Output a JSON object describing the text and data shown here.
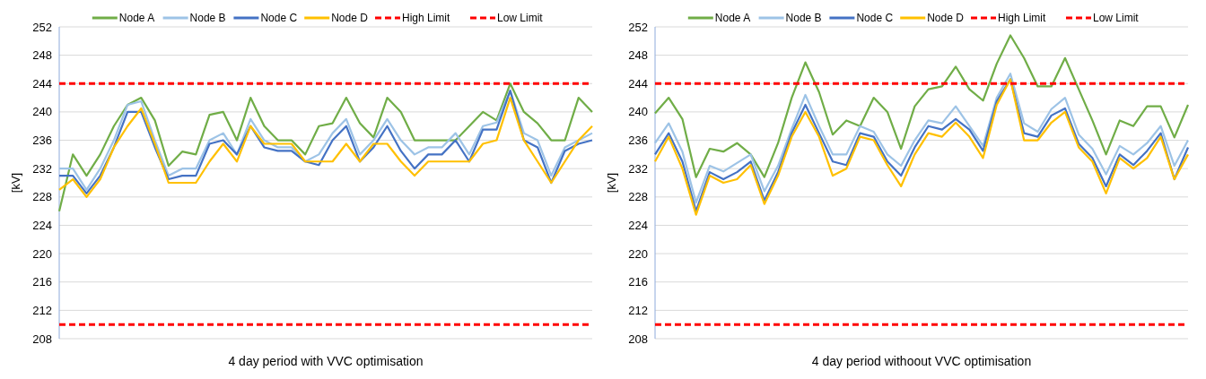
{
  "chart_data": [
    {
      "type": "line",
      "xlabel": "4 day period with VVC optimisation",
      "ylabel": "[kV]",
      "categories": [
        null,
        null,
        null,
        null,
        null,
        null,
        null,
        null,
        null,
        null,
        null,
        null,
        null,
        null,
        null,
        null,
        null,
        null,
        null,
        null,
        null,
        null,
        null,
        null,
        null,
        null,
        null,
        null,
        null,
        null,
        null,
        null,
        null,
        null,
        null,
        null,
        null,
        null,
        null,
        null
      ],
      "ylim": [
        208,
        252
      ],
      "yticks": [
        208,
        212,
        216,
        220,
        224,
        228,
        232,
        236,
        240,
        244,
        248,
        252
      ],
      "grid": "y",
      "legend": "top",
      "line_style": "solid",
      "series": [
        {
          "name": "Node A",
          "color": "#70ad47",
          "values": [
            226,
            234,
            231,
            234,
            238,
            241,
            242,
            238.8,
            232.4,
            234.4,
            234,
            239.6,
            240,
            236,
            242,
            238,
            236,
            236,
            234,
            238,
            238.4,
            242,
            238.4,
            236.4,
            242,
            240,
            236,
            236,
            236,
            236,
            238,
            240,
            238.8,
            244,
            240,
            238.4,
            236,
            236,
            242,
            240
          ]
        },
        {
          "name": "Node B",
          "color": "#9dc3e6",
          "values": [
            232,
            232,
            229,
            232,
            236,
            241,
            241.5,
            236,
            231,
            232,
            232,
            236,
            237,
            234,
            239,
            236,
            235,
            235,
            233,
            234,
            237,
            239,
            234,
            236,
            239,
            236,
            234,
            235,
            235,
            237,
            234,
            238,
            238.5,
            243,
            237,
            236,
            231,
            235,
            236,
            237
          ]
        },
        {
          "name": "Node C",
          "color": "#4472c4",
          "values": [
            231,
            231,
            228.5,
            231,
            235,
            240,
            240,
            235,
            230.5,
            231,
            231,
            235.5,
            236,
            234,
            238,
            235,
            234.5,
            234.5,
            233,
            232.5,
            236,
            238,
            233,
            235,
            238,
            234.5,
            232,
            234,
            234,
            236,
            233,
            237.5,
            237.5,
            243,
            236,
            235,
            230,
            234.5,
            235.5,
            236
          ]
        },
        {
          "name": "Node D",
          "color": "#ffc000",
          "values": [
            229,
            230.5,
            228,
            230.5,
            235,
            238,
            240.5,
            235.5,
            230,
            230,
            230,
            233,
            235.5,
            233,
            238,
            235.5,
            235.5,
            235.5,
            233,
            233,
            233,
            235.5,
            233,
            235.5,
            235.5,
            233,
            231,
            233,
            233,
            233,
            233,
            235.5,
            236,
            242,
            236,
            233,
            230,
            233,
            236,
            238
          ]
        }
      ],
      "ref_lines": [
        {
          "axis": "y",
          "value": 244,
          "label": "High Limit",
          "color": "#ff0000",
          "line_style": "dashed"
        },
        {
          "axis": "y",
          "value": 210,
          "label": "Low Limit",
          "color": "#ff0000",
          "line_style": "dashed"
        }
      ]
    },
    {
      "type": "line",
      "xlabel": "4 day period withoout VVC optimisation",
      "ylabel": "[kV]",
      "categories": [
        null,
        null,
        null,
        null,
        null,
        null,
        null,
        null,
        null,
        null,
        null,
        null,
        null,
        null,
        null,
        null,
        null,
        null,
        null,
        null,
        null,
        null,
        null,
        null,
        null,
        null,
        null,
        null,
        null,
        null,
        null,
        null,
        null,
        null,
        null,
        null,
        null,
        null,
        null,
        null
      ],
      "ylim": [
        208,
        252
      ],
      "yticks": [
        208,
        212,
        216,
        220,
        224,
        228,
        232,
        236,
        240,
        244,
        248,
        252
      ],
      "grid": "y",
      "legend": "top",
      "line_style": "solid",
      "series": [
        {
          "name": "Node A",
          "color": "#70ad47",
          "values": [
            239.8,
            242,
            239,
            230.8,
            234.8,
            234.4,
            235.6,
            234,
            230.8,
            235.6,
            242,
            247,
            242.8,
            236.8,
            238.8,
            238,
            242,
            240,
            234.8,
            240.8,
            243.2,
            243.6,
            246.4,
            243.2,
            241.6,
            246.8,
            250.8,
            247.6,
            243.6,
            243.6,
            247.6,
            243.2,
            238.8,
            234,
            238.8,
            238,
            240.8,
            240.8,
            236.4,
            241
          ]
        },
        {
          "name": "Node B",
          "color": "#9dc3e6",
          "values": [
            235.6,
            238.4,
            234.4,
            227.2,
            232.4,
            231.6,
            232.8,
            234,
            228.8,
            232.4,
            237.6,
            242.4,
            238,
            234,
            234,
            238,
            237.2,
            234,
            232.4,
            236,
            238.8,
            238.4,
            240.8,
            238,
            235.2,
            242,
            245.4,
            238.4,
            237.2,
            240.4,
            242,
            236.8,
            234.8,
            231.2,
            235.2,
            234,
            235.6,
            238,
            232.4,
            236
          ]
        },
        {
          "name": "Node C",
          "color": "#4472c4",
          "values": [
            234,
            237,
            233,
            226,
            231.5,
            230.5,
            231.5,
            233,
            227.5,
            231.5,
            237,
            241,
            237,
            233,
            232.5,
            237,
            236.5,
            233,
            231,
            235,
            238,
            237.5,
            239,
            237.5,
            234.5,
            241.5,
            244.6,
            237,
            236.5,
            239.5,
            240.5,
            235.5,
            233.5,
            229.5,
            234,
            232.5,
            234.5,
            237,
            230.5,
            235
          ]
        },
        {
          "name": "Node D",
          "color": "#ffc000",
          "values": [
            233,
            236.5,
            232,
            225.5,
            231,
            230,
            230.5,
            232.5,
            227,
            231,
            236.5,
            240,
            236.5,
            231,
            232,
            236.5,
            236,
            232.5,
            229.5,
            234,
            237,
            236.5,
            238.5,
            236.5,
            233.5,
            241,
            244.6,
            236,
            236,
            238.5,
            240,
            235,
            233,
            228.5,
            233.5,
            232,
            233.5,
            236.5,
            230.5,
            234
          ]
        }
      ],
      "ref_lines": [
        {
          "axis": "y",
          "value": 244,
          "label": "High Limit",
          "color": "#ff0000",
          "line_style": "dashed"
        },
        {
          "axis": "y",
          "value": 210,
          "label": "Low Limit",
          "color": "#ff0000",
          "line_style": "dashed"
        }
      ]
    }
  ]
}
